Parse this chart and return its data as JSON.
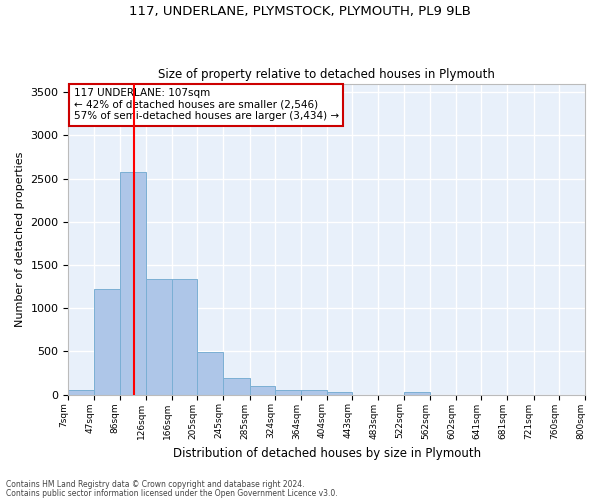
{
  "title": "117, UNDERLANE, PLYMSTOCK, PLYMOUTH, PL9 9LB",
  "subtitle": "Size of property relative to detached houses in Plymouth",
  "xlabel": "Distribution of detached houses by size in Plymouth",
  "ylabel": "Number of detached properties",
  "bin_labels": [
    "7sqm",
    "47sqm",
    "86sqm",
    "126sqm",
    "166sqm",
    "205sqm",
    "245sqm",
    "285sqm",
    "324sqm",
    "364sqm",
    "404sqm",
    "443sqm",
    "483sqm",
    "522sqm",
    "562sqm",
    "602sqm",
    "641sqm",
    "681sqm",
    "721sqm",
    "760sqm",
    "800sqm"
  ],
  "bar_heights": [
    50,
    1220,
    2580,
    1340,
    1340,
    490,
    190,
    100,
    50,
    50,
    30,
    0,
    0,
    30,
    0,
    0,
    0,
    0,
    0,
    0
  ],
  "bar_color": "#aec6e8",
  "bar_edge_color": "#7bafd4",
  "bg_color": "#e8f0fa",
  "grid_color": "#ffffff",
  "ylim": [
    0,
    3600
  ],
  "yticks": [
    0,
    500,
    1000,
    1500,
    2000,
    2500,
    3000,
    3500
  ],
  "bin_edges_sqm": [
    7,
    47,
    86,
    126,
    166,
    205,
    245,
    285,
    324,
    364,
    404,
    443,
    483,
    522,
    562,
    602,
    641,
    681,
    721,
    760,
    800
  ],
  "property_sqm": 107,
  "annotation_line1": "117 UNDERLANE: 107sqm",
  "annotation_line2": "← 42% of detached houses are smaller (2,546)",
  "annotation_line3": "57% of semi-detached houses are larger (3,434) →",
  "annotation_box_color": "#cc0000",
  "footer_text1": "Contains HM Land Registry data © Crown copyright and database right 2024.",
  "footer_text2": "Contains public sector information licensed under the Open Government Licence v3.0."
}
